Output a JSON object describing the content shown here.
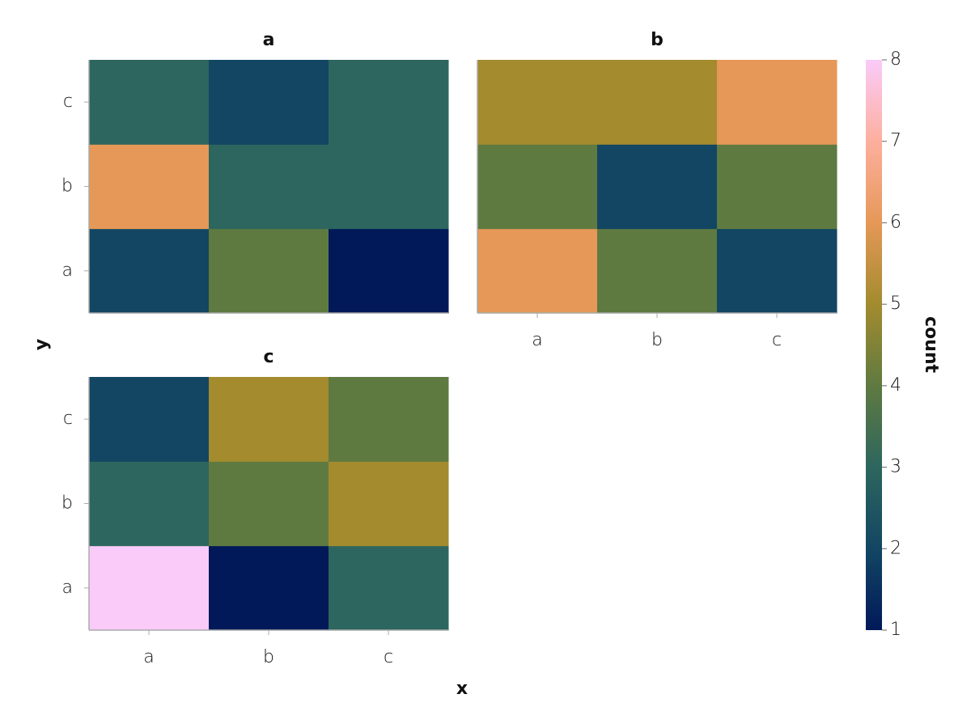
{
  "chart_data": {
    "type": "heatmap",
    "x_label": "x",
    "y_label": "y",
    "x_categories": [
      "a",
      "b",
      "c"
    ],
    "y_categories": [
      "a",
      "b",
      "c"
    ],
    "panels": [
      {
        "title": "a",
        "values": [
          [
            2,
            4,
            1
          ],
          [
            6,
            3,
            3
          ],
          [
            3,
            2,
            3
          ]
        ]
      },
      {
        "title": "b",
        "values": [
          [
            6,
            4,
            2
          ],
          [
            4,
            2,
            4
          ],
          [
            5,
            5,
            6
          ]
        ]
      },
      {
        "title": "c",
        "values": [
          [
            8,
            1,
            3
          ],
          [
            3,
            4,
            5
          ],
          [
            2,
            5,
            4
          ]
        ]
      }
    ],
    "colormap": [
      "#011959",
      "#124663",
      "#2d665e",
      "#5f7a41",
      "#a38b2e",
      "#e59857",
      "#fdaf9e",
      "#facbf9"
    ],
    "colorbar": {
      "label": "count",
      "lim": [
        1,
        8
      ],
      "ticks": [
        1,
        2,
        3,
        4,
        5,
        6,
        7,
        8
      ]
    }
  }
}
